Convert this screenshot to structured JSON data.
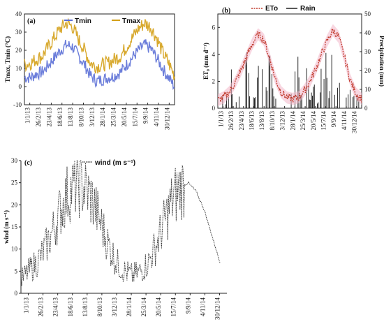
{
  "chart_data": [
    {
      "panel": "(a)",
      "type": "line",
      "ylabel": "Tmax, Tmin (°C)",
      "ylim": [
        -10,
        40
      ],
      "yticks": [
        "-10",
        "0",
        "10",
        "20",
        "30",
        "40"
      ],
      "xticks": [
        "1/1/13",
        "26/2/13",
        "23/4/13",
        "18/6/13",
        "13/8/13",
        "8/10/13",
        "3/12/13",
        "28/1/14",
        "25/3/14",
        "20/5/14",
        "15/7/14",
        "9/9/14",
        "4/11/14",
        "30/12/14"
      ],
      "legend": "top",
      "series": [
        {
          "name": "Tmin",
          "color": "#5b6fd6",
          "values": [
            5,
            5,
            7,
            8,
            12,
            16,
            20,
            23,
            22,
            17,
            12,
            6,
            3,
            4,
            5,
            6,
            8,
            12,
            16,
            20,
            23,
            21,
            16,
            10,
            5,
            0
          ]
        },
        {
          "name": "Tmax",
          "color": "#d4a017",
          "values": [
            12,
            13,
            15,
            17,
            22,
            27,
            32,
            35,
            33,
            26,
            20,
            13,
            11,
            12,
            13,
            15,
            17,
            22,
            27,
            32,
            35,
            33,
            27,
            19,
            13,
            6
          ]
        }
      ]
    },
    {
      "panel": "(b)",
      "type": "line",
      "ylabel": "ET₀ (mm d⁻¹)",
      "y2label": "Precipitation (mm)",
      "ylim": [
        0,
        7
      ],
      "yticks": [
        "0",
        "2",
        "4",
        "6"
      ],
      "y2lim": [
        0,
        50
      ],
      "y2ticks": [
        "0",
        "10",
        "20",
        "30",
        "40",
        "50"
      ],
      "xticks": [
        "1/1/13",
        "26/2/13",
        "23/4/13",
        "18/6/13",
        "13/8/13",
        "8/10/13",
        "3/12/13",
        "28/1/14",
        "25/3/14",
        "20/5/14",
        "15/7/14",
        "9/9/14",
        "4/11/14",
        "30/12/14"
      ],
      "legend": "top",
      "series": [
        {
          "name": "ETo",
          "color": "#c0392b",
          "values": [
            0.6,
            0.8,
            1.2,
            1.9,
            2.8,
            3.8,
            4.8,
            5.5,
            5.1,
            3.7,
            2.2,
            1.2,
            0.8,
            0.7,
            0.8,
            1.3,
            2.0,
            2.9,
            4.0,
            5.0,
            5.8,
            5.3,
            3.8,
            2.1,
            1.1,
            0.7
          ]
        },
        {
          "name": "Rain",
          "color": "#111111",
          "values": [
            5,
            12,
            3,
            18,
            25,
            10,
            8,
            35,
            30,
            15,
            5,
            42,
            22,
            8,
            45,
            10,
            3,
            12,
            30,
            20,
            18,
            38,
            28,
            6,
            30,
            5,
            15,
            2,
            22,
            44,
            12,
            40,
            8,
            25,
            35,
            15,
            10,
            20,
            5,
            30
          ]
        }
      ]
    },
    {
      "panel": "(c)",
      "type": "line",
      "ylabel": "wind (m s⁻¹)",
      "ylim": [
        0,
        30
      ],
      "yticks": [
        "0",
        "5",
        "10",
        "15",
        "20",
        "25",
        "30"
      ],
      "xticks": [
        "1/1/13",
        "26/2/13",
        "23/4/13",
        "18/6/13",
        "13/8/13",
        "8/10/13",
        "3/12/13",
        "28/1/14",
        "25/3/14",
        "20/5/14",
        "15/7/14",
        "9/9/14",
        "4/11/14",
        "30/12/14"
      ],
      "legend": "top",
      "series": [
        {
          "name": "wind (m s⁻¹)",
          "color": "#333333",
          "values": [
            3,
            5,
            7,
            10,
            14,
            19,
            23,
            25,
            24,
            21,
            16,
            11,
            7,
            5,
            4,
            5,
            7,
            11,
            16,
            21,
            24,
            25,
            23,
            19,
            13,
            7
          ]
        }
      ]
    }
  ]
}
